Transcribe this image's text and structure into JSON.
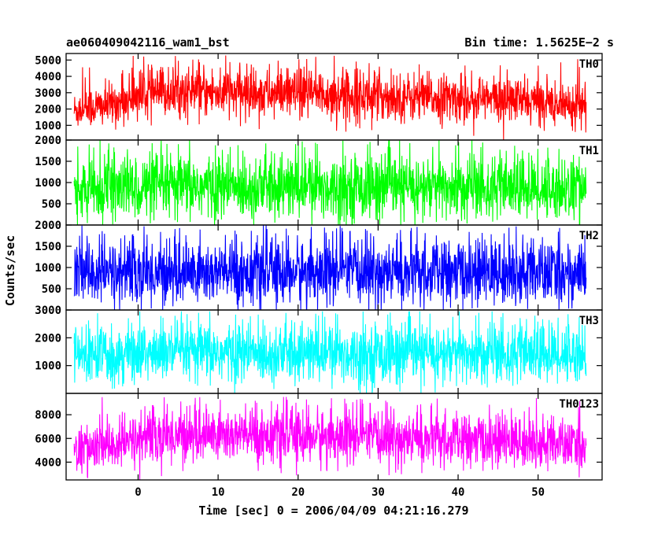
{
  "header": {
    "title": "ae060409042116_wam1_bst",
    "bin_time": "Bin time: 1.5625E−2 s"
  },
  "chart_data": {
    "type": "line",
    "xlabel": "Time [sec] 0 = 2006/04/09 04:21:16.279",
    "ylabel": "Counts/sec",
    "xlim": [
      -9,
      58
    ],
    "xticks": [
      0,
      10,
      20,
      30,
      40,
      50
    ],
    "x_start": -8,
    "x_end": 56,
    "panels": [
      {
        "name": "TH0",
        "color": "#ff0000",
        "ylim": [
          100,
          5400
        ],
        "yticks": [
          1000,
          2000,
          3000,
          4000,
          5000
        ],
        "envelope_x": [
          -8,
          -6,
          -4,
          -2,
          0,
          5,
          10,
          15,
          20,
          25,
          30,
          35,
          40,
          45,
          50,
          56
        ],
        "envelope_mean": [
          1900,
          2100,
          2200,
          2450,
          2900,
          3050,
          3000,
          2950,
          2900,
          2850,
          2800,
          2700,
          2650,
          2600,
          2450,
          2200
        ],
        "envelope_spread": [
          700,
          750,
          750,
          800,
          900,
          900,
          900,
          900,
          900,
          900,
          900,
          850,
          850,
          850,
          800,
          750
        ],
        "peak_max": 5300
      },
      {
        "name": "TH1",
        "color": "#00ff00",
        "ylim": [
          0,
          2000
        ],
        "yticks": [
          500,
          1000,
          1500,
          2000
        ],
        "envelope_x": [
          -8,
          0,
          10,
          20,
          30,
          40,
          50,
          56
        ],
        "envelope_mean": [
          800,
          880,
          900,
          900,
          880,
          870,
          860,
          850
        ],
        "envelope_spread": [
          420,
          450,
          460,
          460,
          450,
          450,
          440,
          440
        ],
        "peak_max": 1990
      },
      {
        "name": "TH2",
        "color": "#0000ff",
        "ylim": [
          0,
          2000
        ],
        "yticks": [
          500,
          1000,
          1500,
          2000
        ],
        "envelope_x": [
          -8,
          0,
          10,
          20,
          30,
          40,
          50,
          56
        ],
        "envelope_mean": [
          850,
          880,
          880,
          880,
          870,
          870,
          860,
          860
        ],
        "envelope_spread": [
          450,
          460,
          460,
          460,
          460,
          450,
          450,
          450
        ],
        "peak_max": 1990
      },
      {
        "name": "TH3",
        "color": "#00ffff",
        "ylim": [
          0,
          3000
        ],
        "yticks": [
          1000,
          2000,
          3000
        ],
        "envelope_x": [
          -8,
          0,
          10,
          20,
          30,
          40,
          50,
          56
        ],
        "envelope_mean": [
          1350,
          1450,
          1450,
          1450,
          1420,
          1400,
          1400,
          1450
        ],
        "envelope_spread": [
          600,
          650,
          650,
          650,
          650,
          640,
          640,
          650
        ],
        "peak_max": 2950
      },
      {
        "name": "TH0123",
        "color": "#ff00ff",
        "ylim": [
          2500,
          9800
        ],
        "yticks": [
          4000,
          6000,
          8000
        ],
        "envelope_x": [
          -8,
          -6,
          -4,
          -2,
          0,
          5,
          10,
          15,
          20,
          25,
          30,
          35,
          40,
          45,
          50,
          56
        ],
        "envelope_mean": [
          4900,
          5100,
          5300,
          5500,
          6000,
          6300,
          6300,
          6250,
          6200,
          6100,
          6000,
          5900,
          5800,
          5750,
          5600,
          5300
        ],
        "envelope_spread": [
          1150,
          1200,
          1200,
          1250,
          1350,
          1400,
          1400,
          1400,
          1400,
          1400,
          1350,
          1350,
          1300,
          1300,
          1250,
          1200
        ],
        "peak_max": 9500
      }
    ]
  }
}
